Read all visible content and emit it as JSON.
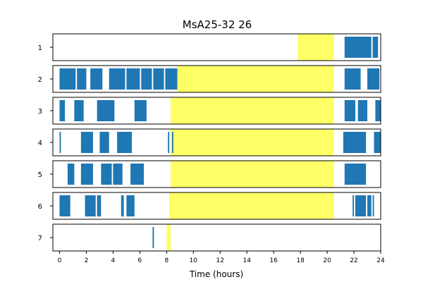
{
  "chart_data": {
    "type": "bar",
    "title": "MsA25-32 26",
    "xlabel": "Time (hours)",
    "ylabel": "",
    "xlim": [
      -0.5,
      24
    ],
    "xticks": [
      0,
      2,
      4,
      6,
      8,
      10,
      12,
      14,
      16,
      18,
      20,
      22,
      24
    ],
    "activity_color": "#1f77b4",
    "light_color": "#ffff66",
    "rows": [
      {
        "label": "1",
        "light": [
          [
            17.8,
            20.5
          ]
        ],
        "activity": [
          [
            21.3,
            23.3
          ],
          [
            23.4,
            23.8
          ]
        ]
      },
      {
        "label": "2",
        "light": [
          [
            8.8,
            20.5
          ]
        ],
        "activity": [
          [
            0,
            1.2
          ],
          [
            1.3,
            2.0
          ],
          [
            2.3,
            3.2
          ],
          [
            3.7,
            4.9
          ],
          [
            5.0,
            6.0
          ],
          [
            6.1,
            6.9
          ],
          [
            7.0,
            7.8
          ],
          [
            7.9,
            8.8
          ],
          [
            21.3,
            22.5
          ],
          [
            23.0,
            23.9
          ]
        ]
      },
      {
        "label": "3",
        "light": [
          [
            8.3,
            20.5
          ]
        ],
        "activity": [
          [
            0,
            0.4
          ],
          [
            1.1,
            1.8
          ],
          [
            2.8,
            4.1
          ],
          [
            5.6,
            6.5
          ],
          [
            21.3,
            22.1
          ],
          [
            22.3,
            23.0
          ],
          [
            23.6,
            24.0
          ]
        ]
      },
      {
        "label": "4",
        "light": [
          [
            8.3,
            20.5
          ]
        ],
        "activity": [
          [
            0,
            0.1
          ],
          [
            1.6,
            2.5
          ],
          [
            3.0,
            3.7
          ],
          [
            4.3,
            5.4
          ],
          [
            8.1,
            8.2
          ],
          [
            8.4,
            8.5
          ],
          [
            21.2,
            22.9
          ],
          [
            23.5,
            24.0
          ]
        ]
      },
      {
        "label": "5",
        "light": [
          [
            8.3,
            20.5
          ]
        ],
        "activity": [
          [
            0.6,
            1.1
          ],
          [
            1.6,
            2.5
          ],
          [
            3.1,
            3.9
          ],
          [
            4.0,
            4.7
          ],
          [
            5.3,
            6.3
          ],
          [
            21.3,
            22.9
          ]
        ]
      },
      {
        "label": "6",
        "light": [
          [
            8.2,
            20.5
          ]
        ],
        "activity": [
          [
            0,
            0.8
          ],
          [
            1.9,
            2.7
          ],
          [
            2.8,
            3.1
          ],
          [
            4.6,
            4.8
          ],
          [
            5.0,
            5.6
          ],
          [
            21.9,
            22.0
          ],
          [
            22.1,
            22.9
          ],
          [
            23.0,
            23.3
          ],
          [
            23.4,
            23.5
          ]
        ]
      },
      {
        "label": "7",
        "light": [
          [
            8.0,
            8.3
          ]
        ],
        "activity": [
          [
            6.95,
            7.05
          ]
        ]
      }
    ]
  }
}
